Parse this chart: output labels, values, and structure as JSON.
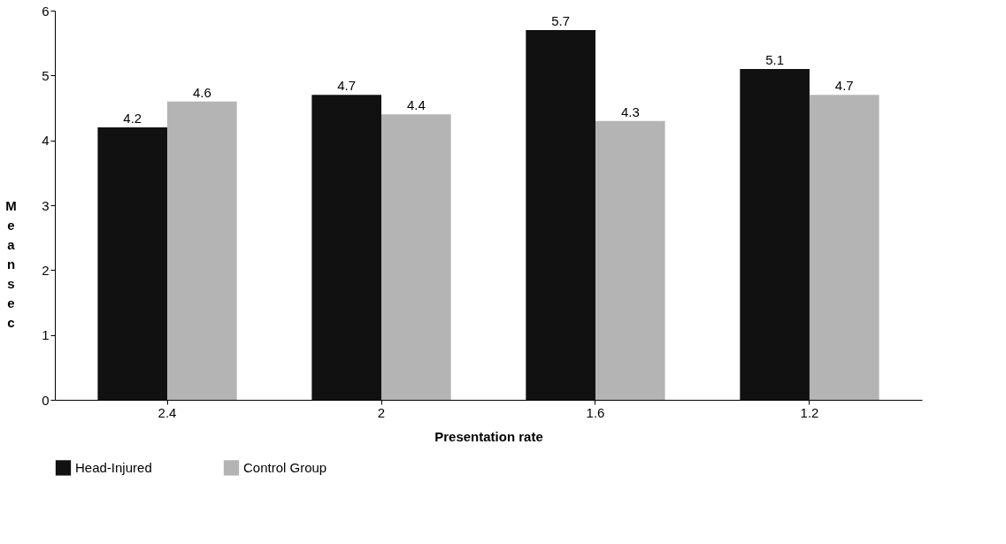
{
  "chart_data": {
    "type": "bar",
    "xlabel": "Presentation rate",
    "ylabel": "Mean sec",
    "categories": [
      "2.4",
      "2",
      "1.6",
      "1.2"
    ],
    "series": [
      {
        "name": "Head-Injured",
        "color": "#111111",
        "values": [
          4.2,
          4.7,
          5.7,
          5.1
        ]
      },
      {
        "name": "Control Group",
        "color": "#b4b4b4",
        "values": [
          4.6,
          4.4,
          4.3,
          4.7
        ]
      }
    ],
    "ylim": [
      0,
      6
    ],
    "yticks": [
      0,
      1,
      2,
      3,
      4,
      5,
      6
    ],
    "grid": false,
    "legend": "bottom",
    "data_labels": true
  }
}
